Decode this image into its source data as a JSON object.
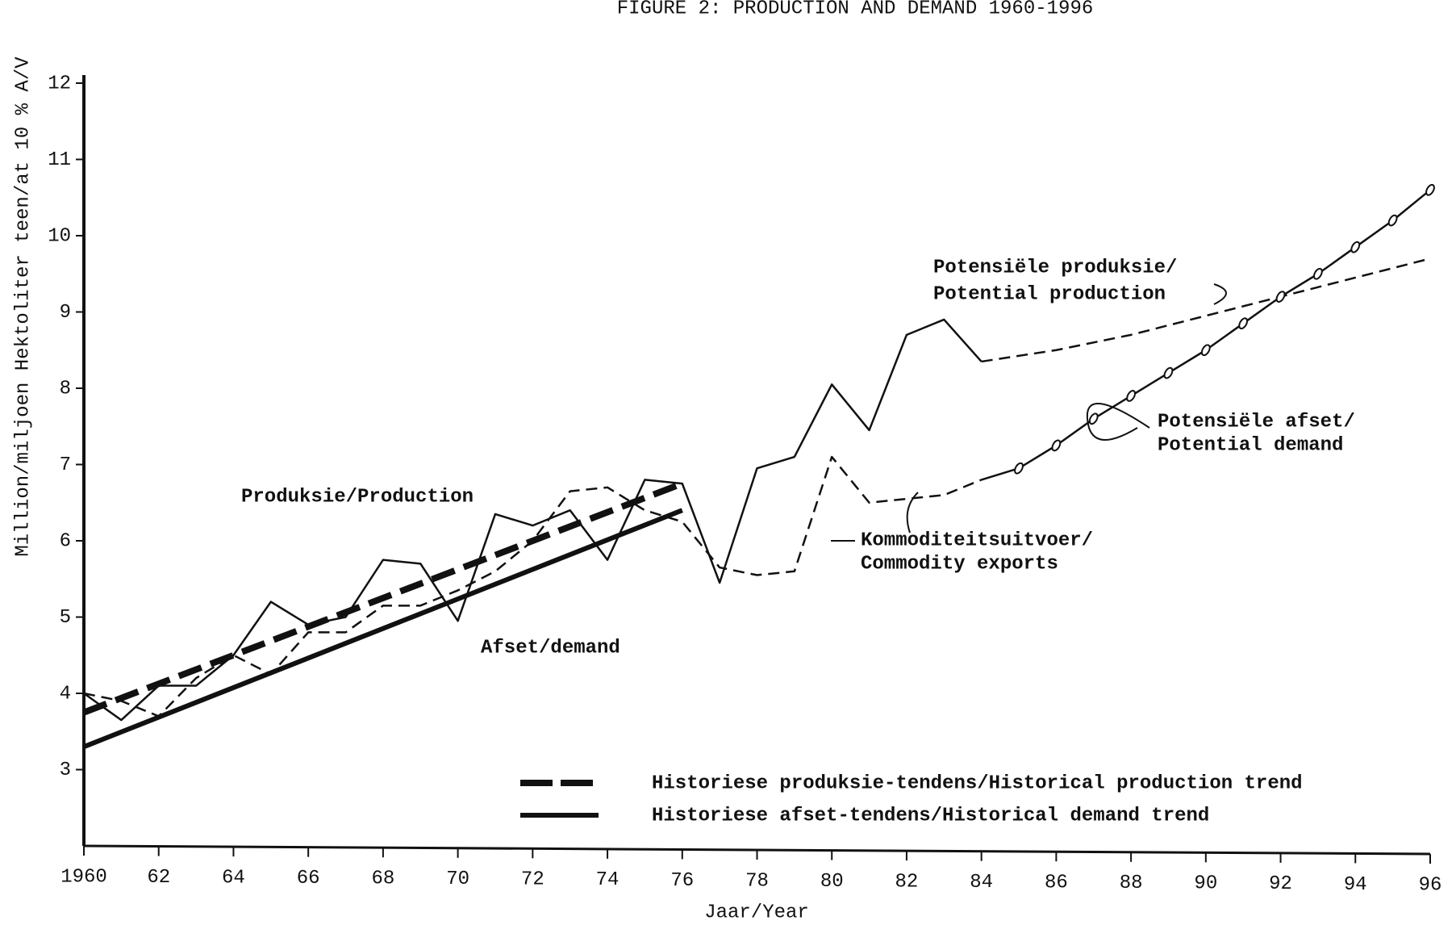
{
  "chart_data": {
    "type": "line",
    "title": "FIGURE 2: PRODUCTION AND DEMAND 1960-1996",
    "y_label": "Million/miljoen Hektoliter teen/at 10 % A/V",
    "x_label": "Jaar/Year",
    "xlim": [
      1960,
      1996
    ],
    "ylim": [
      2,
      12
    ],
    "xticks": [
      1960,
      {
        "value": 1962,
        "label": "62"
      },
      {
        "value": 1964,
        "label": "64"
      },
      {
        "value": 1966,
        "label": "66"
      },
      {
        "value": 1968,
        "label": "68"
      },
      {
        "value": 1970,
        "label": "70"
      },
      {
        "value": 1972,
        "label": "72"
      },
      {
        "value": 1974,
        "label": "74"
      },
      {
        "value": 1976,
        "label": "76"
      },
      {
        "value": 1978,
        "label": "78"
      },
      {
        "value": 1980,
        "label": "80"
      },
      {
        "value": 1982,
        "label": "82"
      },
      {
        "value": 1984,
        "label": "84"
      },
      {
        "value": 1986,
        "label": "86"
      },
      {
        "value": 1988,
        "label": "88"
      },
      {
        "value": 1990,
        "label": "90"
      },
      {
        "value": 1992,
        "label": "92"
      },
      {
        "value": 1994,
        "label": "94"
      },
      {
        "value": 1996,
        "label": "96"
      }
    ],
    "yticks": [
      3,
      4,
      5,
      6,
      7,
      8,
      9,
      10,
      11,
      12
    ],
    "annotations": [
      "Potensiële produksie/",
      "Potential production",
      "Potensiële afset/",
      "Potential demand",
      "Kommoditeitsuitvoer/",
      "Commodity exports"
    ],
    "series": [
      {
        "name": "Produksie/Production",
        "style": "solid",
        "color": "#111111",
        "x": [
          1960,
          1961,
          1962,
          1963,
          1964,
          1965,
          1966,
          1967,
          1968,
          1969,
          1970,
          1971,
          1972,
          1973,
          1974,
          1975,
          1976,
          1977,
          1978,
          1979,
          1980,
          1981,
          1982,
          1983,
          1984
        ],
        "values": [
          4.0,
          3.65,
          4.1,
          4.1,
          4.5,
          5.2,
          4.9,
          5.0,
          5.75,
          5.7,
          4.95,
          6.35,
          6.2,
          6.4,
          5.75,
          6.8,
          6.75,
          5.45,
          6.95,
          7.1,
          8.05,
          7.45,
          8.7,
          8.9,
          8.35
        ]
      },
      {
        "name": "Afset/demand",
        "style": "dashed",
        "color": "#111111",
        "x": [
          1960,
          1961,
          1962,
          1963,
          1964,
          1965,
          1966,
          1967,
          1968,
          1969,
          1970,
          1971,
          1972,
          1973,
          1974,
          1975,
          1976,
          1977,
          1978,
          1979,
          1980,
          1981,
          1982,
          1983,
          1984
        ],
        "values": [
          4.0,
          3.9,
          3.7,
          4.2,
          4.5,
          4.25,
          4.8,
          4.8,
          5.15,
          5.15,
          5.35,
          5.6,
          6.0,
          6.65,
          6.7,
          6.4,
          6.25,
          5.65,
          5.55,
          5.6,
          7.1,
          6.5,
          6.55,
          6.6,
          6.8
        ]
      },
      {
        "style": "dashed",
        "color": "#111111",
        "x": [
          1984,
          1986,
          1988,
          1990,
          1992,
          1994,
          1996
        ],
        "values": [
          8.35,
          8.5,
          8.7,
          8.95,
          9.2,
          9.45,
          9.7
        ]
      },
      {
        "style": "circles",
        "color": "#111111",
        "x": [
          1984,
          1985,
          1986,
          1987,
          1988,
          1989,
          1990,
          1991,
          1992,
          1993,
          1994,
          1995,
          1996
        ],
        "values": [
          6.8,
          6.95,
          7.25,
          7.6,
          7.9,
          8.2,
          8.5,
          8.85,
          9.2,
          9.5,
          9.85,
          10.2,
          10.6
        ]
      },
      {
        "name": "Historiese produksie-tendens/Historical production trend",
        "style": "bold-dashed",
        "legend": true,
        "color": "#111111",
        "x": [
          1960,
          1976
        ],
        "values": [
          3.75,
          6.75
        ]
      },
      {
        "name": "Historiese afset-tendens/Historical demand trend",
        "style": "bold",
        "legend": true,
        "color": "#111111",
        "x": [
          1960,
          1976
        ],
        "values": [
          3.3,
          6.4
        ]
      }
    ]
  }
}
